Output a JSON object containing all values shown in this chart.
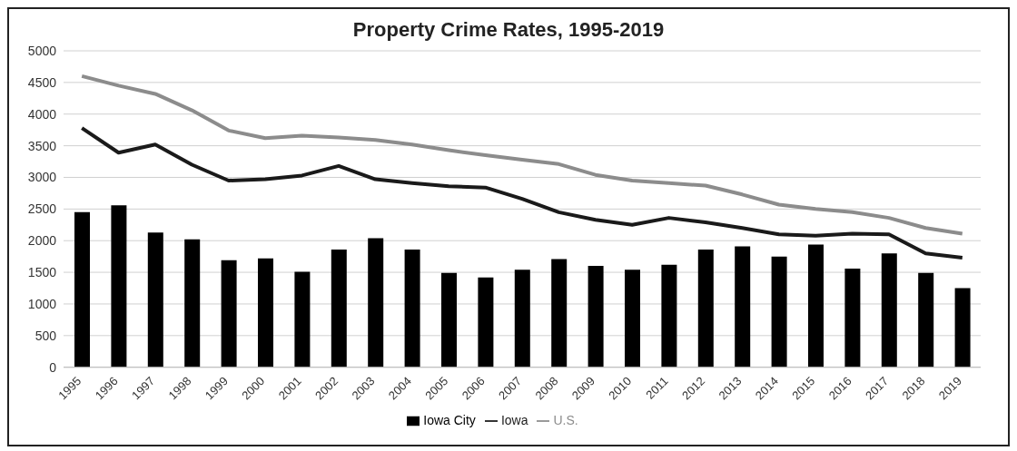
{
  "chart_data": {
    "type": "bar",
    "title": "Property Crime Rates, 1995-2019",
    "categories": [
      "1995",
      "1996",
      "1997",
      "1998",
      "1999",
      "2000",
      "2001",
      "2002",
      "2003",
      "2004",
      "2005",
      "2006",
      "2007",
      "2008",
      "2009",
      "2010",
      "2011",
      "2012",
      "2013",
      "2014",
      "2015",
      "2016",
      "2017",
      "2018",
      "2019"
    ],
    "series": [
      {
        "name": "Iowa City",
        "color": "#000000",
        "values": [
          2450,
          2560,
          2130,
          2020,
          1690,
          1720,
          1510,
          1860,
          2040,
          1860,
          1490,
          1420,
          1540,
          1710,
          1600,
          1540,
          1620,
          1860,
          1910,
          1750,
          1940,
          1560,
          1800,
          1490,
          1250
        ]
      },
      {
        "name": "Iowa",
        "type": "line",
        "color": "#1a1a1a",
        "values": [
          3780,
          3390,
          3520,
          3200,
          2950,
          2970,
          3030,
          3180,
          2970,
          2910,
          2860,
          2840,
          2660,
          2450,
          2330,
          2250,
          2360,
          2290,
          2200,
          2100,
          2080,
          2110,
          2100,
          1800,
          1730
        ]
      },
      {
        "name": "U.S.",
        "type": "line",
        "color": "#8c8c8c",
        "values": [
          4600,
          4450,
          4320,
          4060,
          3740,
          3620,
          3660,
          3630,
          3590,
          3520,
          3430,
          3350,
          3280,
          3210,
          3040,
          2950,
          2910,
          2870,
          2730,
          2570,
          2500,
          2450,
          2360,
          2200,
          2110
        ]
      }
    ],
    "ylim": [
      0,
      5000
    ],
    "yticks": [
      0,
      500,
      1000,
      1500,
      2000,
      2500,
      3000,
      3500,
      4000,
      4500,
      5000
    ],
    "grid": "y",
    "legend": "bottom",
    "marker": "none",
    "line_style": "solid"
  }
}
